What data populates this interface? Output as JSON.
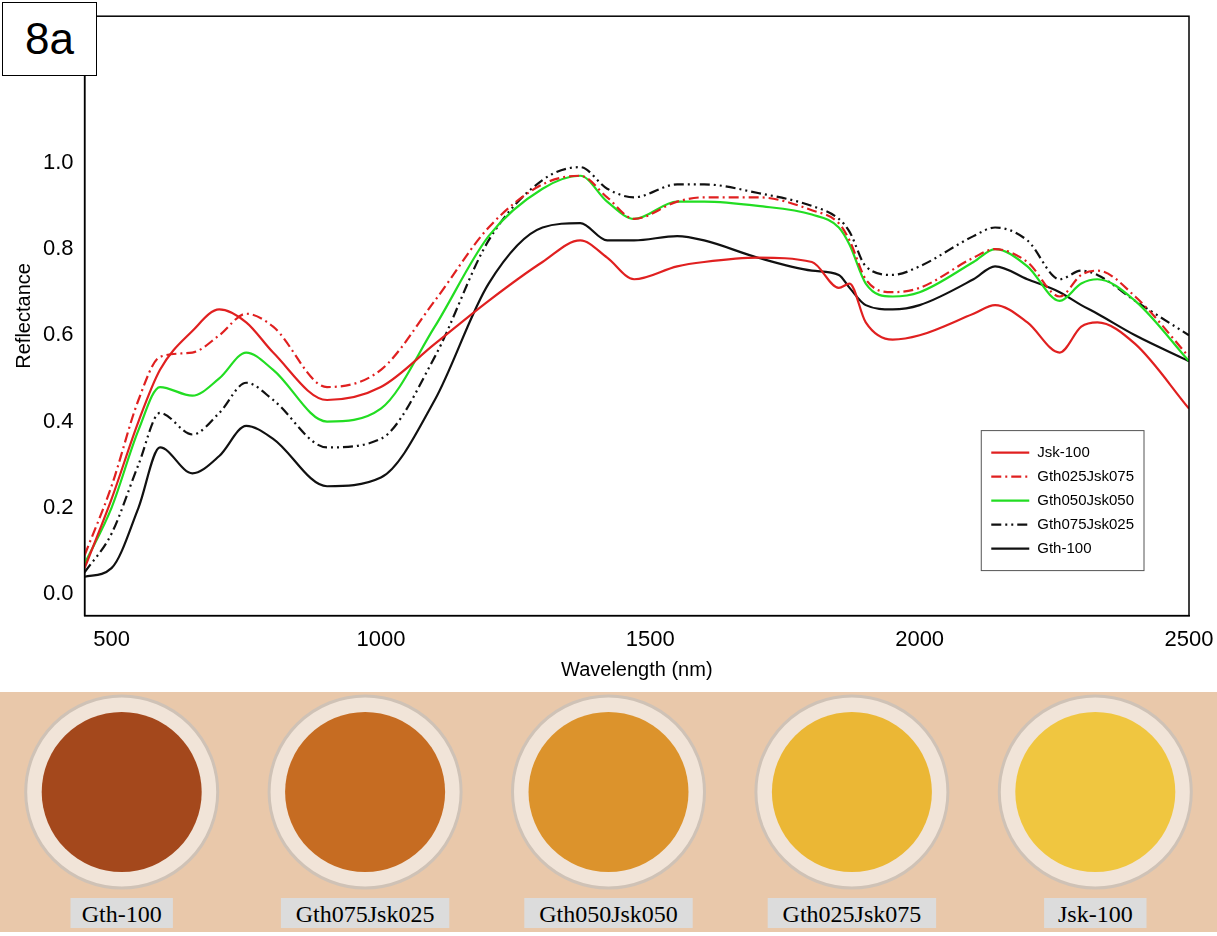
{
  "panel_label": "8a",
  "chart_data": {
    "type": "line",
    "x_label": "Wavelength (nm)",
    "y_label": "Reflectance",
    "x": [
      450,
      500,
      550,
      590,
      650,
      700,
      750,
      800,
      900,
      1000,
      1100,
      1200,
      1300,
      1370,
      1420,
      1470,
      1550,
      1600,
      1700,
      1800,
      1850,
      1870,
      1900,
      1950,
      2000,
      2100,
      2140,
      2200,
      2260,
      2300,
      2330,
      2400,
      2500
    ],
    "series": [
      {
        "name": "Jsk-100",
        "color": "#e02020",
        "line_style": "solid",
        "values": [
          0.06,
          0.22,
          0.4,
          0.52,
          0.61,
          0.66,
          0.63,
          0.56,
          0.45,
          0.48,
          0.58,
          0.68,
          0.77,
          0.82,
          0.78,
          0.73,
          0.76,
          0.77,
          0.78,
          0.77,
          0.71,
          0.72,
          0.63,
          0.59,
          0.6,
          0.65,
          0.67,
          0.63,
          0.56,
          0.62,
          0.63,
          0.58,
          0.43
        ]
      },
      {
        "name": "Gth025Jsk075",
        "color": "#e02020",
        "line_style": "dashdot",
        "values": [
          0.09,
          0.25,
          0.45,
          0.55,
          0.56,
          0.6,
          0.65,
          0.62,
          0.48,
          0.52,
          0.68,
          0.85,
          0.95,
          0.97,
          0.92,
          0.87,
          0.91,
          0.92,
          0.92,
          0.89,
          0.86,
          0.82,
          0.73,
          0.7,
          0.71,
          0.78,
          0.8,
          0.77,
          0.69,
          0.74,
          0.75,
          0.69,
          0.55
        ]
      },
      {
        "name": "Gth050Jsk050",
        "color": "#22dd22",
        "line_style": "solid",
        "values": [
          0.07,
          0.2,
          0.38,
          0.48,
          0.46,
          0.5,
          0.56,
          0.52,
          0.4,
          0.43,
          0.62,
          0.83,
          0.94,
          0.97,
          0.91,
          0.87,
          0.91,
          0.91,
          0.9,
          0.88,
          0.85,
          0.81,
          0.72,
          0.69,
          0.7,
          0.77,
          0.8,
          0.76,
          0.68,
          0.72,
          0.73,
          0.68,
          0.54
        ]
      },
      {
        "name": "Gth075Jsk025",
        "color": "#111111",
        "line_style": "dashdotdot",
        "values": [
          0.05,
          0.14,
          0.3,
          0.42,
          0.37,
          0.42,
          0.49,
          0.45,
          0.34,
          0.36,
          0.55,
          0.82,
          0.96,
          0.99,
          0.94,
          0.92,
          0.95,
          0.95,
          0.93,
          0.9,
          0.87,
          0.84,
          0.76,
          0.74,
          0.76,
          0.83,
          0.85,
          0.82,
          0.73,
          0.75,
          0.74,
          0.68,
          0.6
        ]
      },
      {
        "name": "Gth-100",
        "color": "#111111",
        "line_style": "solid",
        "values": [
          0.04,
          0.06,
          0.2,
          0.34,
          0.28,
          0.32,
          0.39,
          0.36,
          0.25,
          0.27,
          0.45,
          0.72,
          0.85,
          0.86,
          0.82,
          0.82,
          0.83,
          0.82,
          0.78,
          0.75,
          0.74,
          0.71,
          0.67,
          0.66,
          0.67,
          0.73,
          0.76,
          0.73,
          0.7,
          0.67,
          0.65,
          0.6,
          0.54
        ]
      }
    ],
    "xlim": [
      450,
      2500
    ],
    "xticks": [
      500,
      1000,
      1500,
      2000,
      2500
    ],
    "ylim": [
      -0.05,
      1.34
    ],
    "yticks": [
      {
        "value": 0,
        "label": "0.0"
      },
      0.2,
      0.4,
      0.6,
      0.8,
      {
        "value": 1,
        "label": "1.0"
      }
    ],
    "grid": false,
    "legend": "lower right"
  },
  "samples": [
    {
      "label": "Gth-100",
      "color": "#a4481c"
    },
    {
      "label": "Gth075Jsk025",
      "color": "#c66c22"
    },
    {
      "label": "Gth050Jsk050",
      "color": "#dc932c"
    },
    {
      "label": "Gth025Jsk075",
      "color": "#ebb735"
    },
    {
      "label": "Jsk-100",
      "color": "#f0c640"
    }
  ]
}
